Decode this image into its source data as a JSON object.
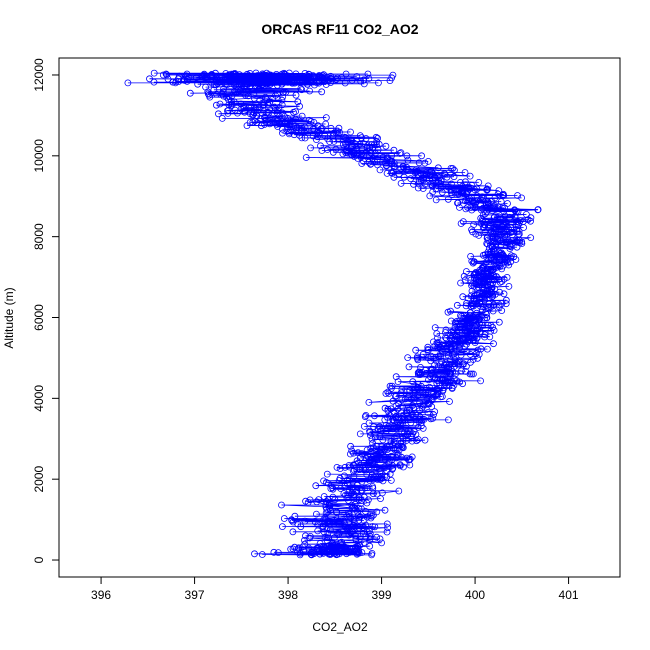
{
  "chart_data": {
    "type": "scatter",
    "title": "ORCAS RF11 CO2_AO2",
    "xlabel": "CO2_AO2",
    "ylabel": "Altitude (m)",
    "xlim": [
      395.55,
      401.55
    ],
    "ylim": [
      -420,
      12420
    ],
    "x_ticks": [
      396,
      397,
      398,
      399,
      400,
      401
    ],
    "y_ticks": [
      0,
      2000,
      4000,
      6000,
      8000,
      10000,
      12000
    ],
    "grid": false,
    "legend": "none",
    "series_color": "#0000ff",
    "marker": "open-circle",
    "connected": true,
    "profile": [
      {
        "alt": 150,
        "co2": 398.4,
        "spread": 0.45
      },
      {
        "alt": 500,
        "co2": 398.6,
        "spread": 0.5
      },
      {
        "alt": 1000,
        "co2": 398.5,
        "spread": 0.5
      },
      {
        "alt": 1500,
        "co2": 398.65,
        "spread": 0.45
      },
      {
        "alt": 2000,
        "co2": 398.8,
        "spread": 0.4
      },
      {
        "alt": 2500,
        "co2": 398.95,
        "spread": 0.4
      },
      {
        "alt": 3000,
        "co2": 399.1,
        "spread": 0.35
      },
      {
        "alt": 3500,
        "co2": 399.25,
        "spread": 0.35
      },
      {
        "alt": 4000,
        "co2": 399.4,
        "spread": 0.35
      },
      {
        "alt": 4500,
        "co2": 399.6,
        "spread": 0.35
      },
      {
        "alt": 5000,
        "co2": 399.7,
        "spread": 0.35
      },
      {
        "alt": 5500,
        "co2": 399.85,
        "spread": 0.3
      },
      {
        "alt": 6000,
        "co2": 400.0,
        "spread": 0.25
      },
      {
        "alt": 6500,
        "co2": 400.1,
        "spread": 0.2
      },
      {
        "alt": 7000,
        "co2": 400.1,
        "spread": 0.2
      },
      {
        "alt": 7500,
        "co2": 400.2,
        "spread": 0.2
      },
      {
        "alt": 8000,
        "co2": 400.3,
        "spread": 0.3
      },
      {
        "alt": 8500,
        "co2": 400.3,
        "spread": 0.35
      },
      {
        "alt": 9000,
        "co2": 400.0,
        "spread": 0.4
      },
      {
        "alt": 9500,
        "co2": 399.5,
        "spread": 0.4
      },
      {
        "alt": 10000,
        "co2": 398.9,
        "spread": 0.45
      },
      {
        "alt": 10500,
        "co2": 398.4,
        "spread": 0.45
      },
      {
        "alt": 11000,
        "co2": 397.7,
        "spread": 0.45
      },
      {
        "alt": 11500,
        "co2": 397.5,
        "spread": 0.5
      },
      {
        "alt": 11900,
        "co2": 397.8,
        "spread": 1.1
      }
    ],
    "n_points": 1800
  }
}
